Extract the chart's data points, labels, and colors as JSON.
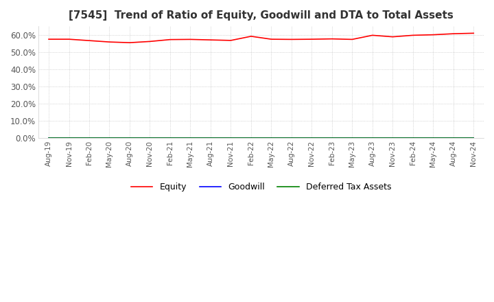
{
  "title": "[7545]  Trend of Ratio of Equity, Goodwill and DTA to Total Assets",
  "title_fontsize": 11,
  "ylim": [
    0.0,
    0.65
  ],
  "yticks": [
    0.0,
    0.1,
    0.2,
    0.3,
    0.4,
    0.5,
    0.6
  ],
  "ytick_labels": [
    "0.0%",
    "10.0%",
    "20.0%",
    "30.0%",
    "40.0%",
    "50.0%",
    "60.0%"
  ],
  "x_labels": [
    "Aug-19",
    "Nov-19",
    "Feb-20",
    "May-20",
    "Aug-20",
    "Nov-20",
    "Feb-21",
    "May-21",
    "Aug-21",
    "Nov-21",
    "Feb-22",
    "May-22",
    "Aug-22",
    "Nov-22",
    "Feb-23",
    "May-23",
    "Aug-23",
    "Nov-23",
    "Feb-24",
    "May-24",
    "Aug-24",
    "Nov-24"
  ],
  "equity": [
    0.574,
    0.574,
    0.566,
    0.558,
    0.554,
    0.561,
    0.572,
    0.573,
    0.57,
    0.567,
    0.591,
    0.574,
    0.573,
    0.574,
    0.576,
    0.573,
    0.597,
    0.588,
    0.597,
    0.6,
    0.606,
    0.609
  ],
  "goodwill": [
    0.0,
    0.0,
    0.0,
    0.0,
    0.0,
    0.0,
    0.0,
    0.0,
    0.0,
    0.0,
    0.0,
    0.0,
    0.0,
    0.0,
    0.0,
    0.0,
    0.0,
    0.0,
    0.0,
    0.0,
    0.0,
    0.0
  ],
  "dta": [
    0.0,
    0.0,
    0.0,
    0.0,
    0.0,
    0.0,
    0.0,
    0.0,
    0.0,
    0.0,
    0.0,
    0.0,
    0.0,
    0.0,
    0.0,
    0.0,
    0.0,
    0.0,
    0.0,
    0.0,
    0.0,
    0.0
  ],
  "equity_color": "#FF0000",
  "goodwill_color": "#0000FF",
  "dta_color": "#008000",
  "background_color": "#FFFFFF",
  "grid_color": "#999999",
  "legend_labels": [
    "Equity",
    "Goodwill",
    "Deferred Tax Assets"
  ]
}
